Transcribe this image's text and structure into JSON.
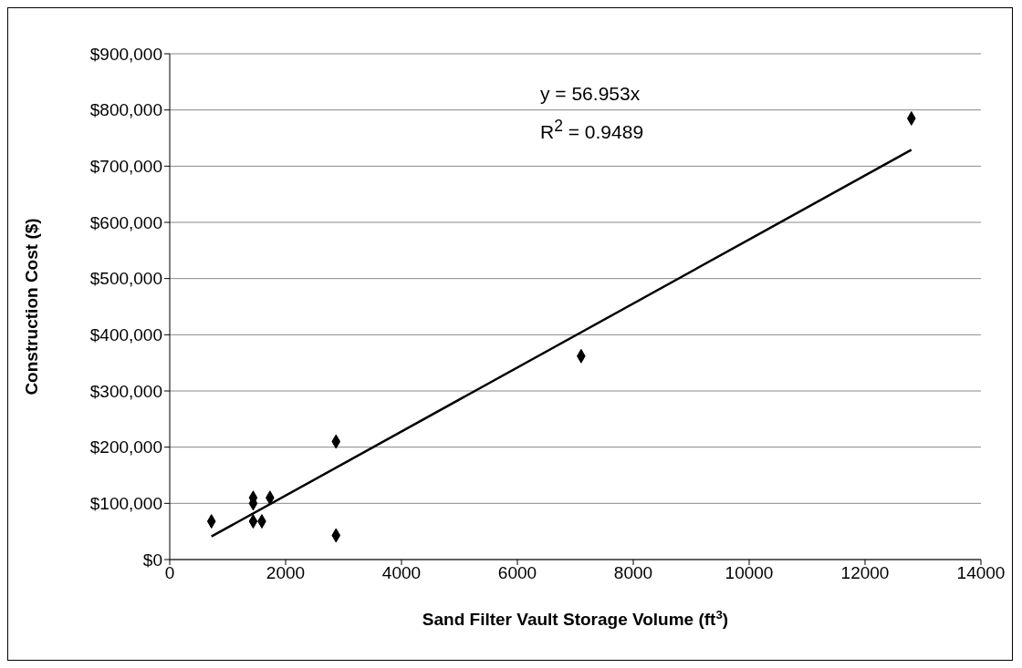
{
  "chart_data": {
    "type": "scatter",
    "xlabel": "Sand Filter Vault Storage Volume (ft$^{3}$)",
    "ylabel": "Construction Cost ($)",
    "annotations": [
      "y = 56.953x",
      "R$^{2}$ = 0.9489"
    ],
    "xlim": [
      0,
      14000
    ],
    "xticks": [
      0,
      2000,
      4000,
      6000,
      8000,
      10000,
      12000,
      14000
    ],
    "ylim": [
      0,
      900000
    ],
    "yticks": [
      {
        "value": 0,
        "label": "$0"
      },
      {
        "value": 100000,
        "label": "$100,000"
      },
      {
        "value": 200000,
        "label": "$200,000"
      },
      {
        "value": 300000,
        "label": "$300,000"
      },
      {
        "value": 400000,
        "label": "$400,000"
      },
      {
        "value": 500000,
        "label": "$500,000"
      },
      {
        "value": 600000,
        "label": "$600,000"
      },
      {
        "value": 700000,
        "label": "$700,000"
      },
      {
        "value": 800000,
        "label": "$800,000"
      },
      {
        "value": 900000,
        "label": "$900,000"
      }
    ],
    "grid": "y",
    "series": [
      {
        "marker": "diamond",
        "color": "#000000",
        "x": [
          720,
          1440,
          1440,
          1440,
          1590,
          1730,
          2870,
          2870,
          7100,
          12800
        ],
        "values": [
          68000,
          110000,
          100000,
          68000,
          68000,
          110000,
          210000,
          43000,
          362000,
          785000
        ]
      },
      {
        "type": "line",
        "marker": "none",
        "color": "#000000",
        "x": [
          720,
          12800
        ],
        "values": [
          41000,
          729000
        ]
      }
    ]
  }
}
